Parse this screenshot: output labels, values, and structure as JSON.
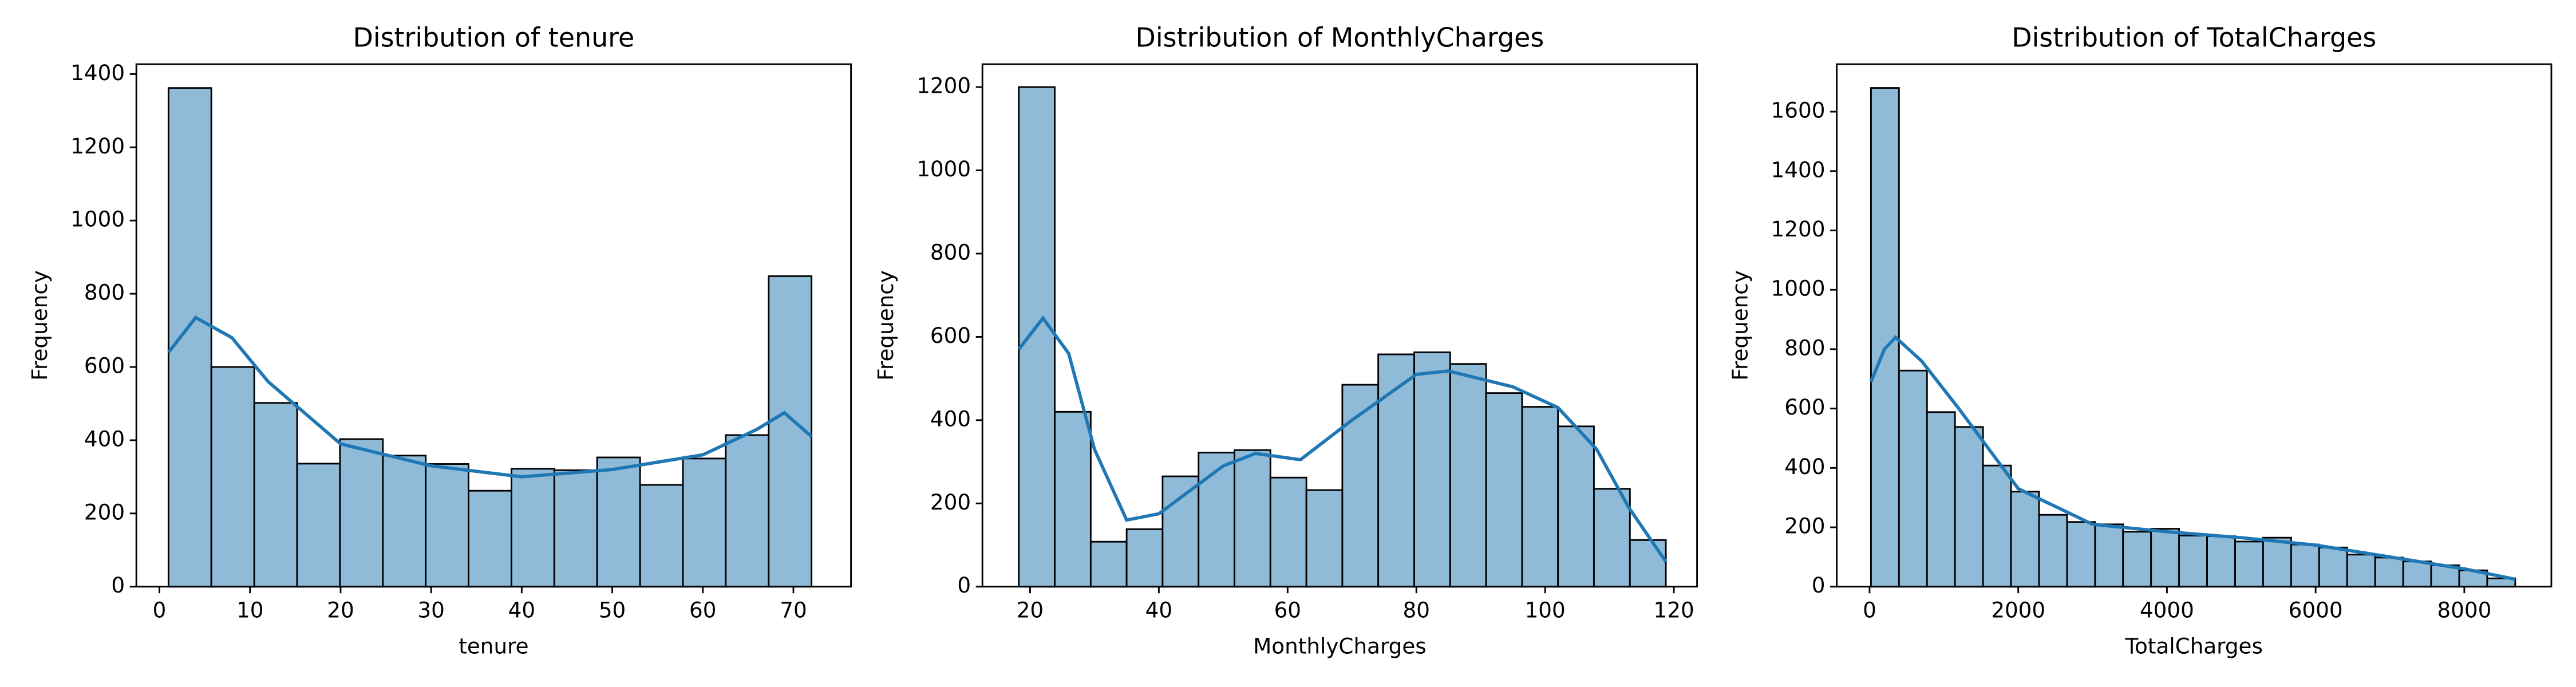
{
  "chart_data": [
    {
      "type": "histogram",
      "title": "Distribution of tenure",
      "xlabel": "tenure",
      "ylabel": "Frequency",
      "bins": [
        1,
        5.73,
        10.47,
        15.2,
        19.93,
        24.67,
        29.4,
        34.13,
        38.87,
        43.6,
        48.33,
        53.07,
        57.8,
        62.53,
        67.27,
        72
      ],
      "values": [
        1362,
        600,
        502,
        336,
        403,
        358,
        335,
        262,
        322,
        318,
        353,
        278,
        350,
        414,
        848
      ],
      "color": "#8fbbd9",
      "kde": {
        "x": [
          1,
          4,
          8,
          12,
          20,
          30,
          40,
          50,
          60,
          66,
          69,
          72
        ],
        "values": [
          640,
          735,
          680,
          560,
          390,
          330,
          300,
          320,
          360,
          430,
          475,
          410
        ],
        "color": "#1f77b4"
      },
      "xlim": [
        -2.55,
        76.36
      ],
      "ylim": [
        0,
        1427
      ],
      "xticks": [
        0,
        10,
        20,
        30,
        40,
        50,
        60,
        70
      ],
      "yticks": [
        0,
        200,
        400,
        600,
        800,
        1000,
        1200,
        1400
      ]
    },
    {
      "type": "histogram",
      "title": "Distribution of MonthlyCharges",
      "xlabel": "MonthlyCharges",
      "ylabel": "Frequency",
      "bins": [
        18.25,
        23.83,
        29.42,
        35,
        40.58,
        46.17,
        51.75,
        57.33,
        62.92,
        68.5,
        74.08,
        79.67,
        85.25,
        90.83,
        96.42,
        102,
        107.58,
        113.17,
        118.75
      ],
      "values": [
        1200,
        420,
        108,
        138,
        265,
        322,
        328,
        262,
        232,
        485,
        558,
        563,
        535,
        465,
        432,
        385,
        235,
        112
      ],
      "color": "#8fbbd9",
      "kde": {
        "x": [
          18.25,
          22,
          26,
          30,
          35,
          40,
          50,
          55,
          62,
          70,
          80,
          85,
          95,
          102,
          108,
          113,
          118.75
        ],
        "values": [
          570,
          645,
          560,
          330,
          160,
          175,
          290,
          320,
          305,
          400,
          510,
          518,
          480,
          430,
          330,
          190,
          60
        ],
        "color": "#1f77b4"
      },
      "xlim": [
        12.6,
        123.6
      ],
      "ylim": [
        0,
        1255
      ],
      "xticks": [
        20,
        40,
        60,
        80,
        100,
        120
      ],
      "yticks": [
        0,
        200,
        400,
        600,
        800,
        1000,
        1200
      ]
    },
    {
      "type": "histogram",
      "title": "Distribution of TotalCharges",
      "xlabel": "TotalCharges",
      "ylabel": "Frequency",
      "bins": [
        18.8,
        395.6,
        772.4,
        1149.1,
        1525.9,
        1902.7,
        2279.5,
        2656.3,
        3033.1,
        3409.8,
        3786.6,
        4163.4,
        4540.2,
        4917,
        5293.7,
        5670.5,
        6047.3,
        6424.1,
        6800.9,
        7177.7,
        7554.4,
        7931.2,
        8308,
        8684.8
      ],
      "values": [
        1680,
        728,
        588,
        538,
        408,
        320,
        242,
        218,
        210,
        185,
        195,
        172,
        170,
        152,
        165,
        142,
        132,
        108,
        98,
        85,
        72,
        55,
        28
      ],
      "color": "#8fbbd9",
      "kde": {
        "x": [
          18.8,
          200,
          350,
          700,
          1200,
          2000,
          3000,
          4000,
          5000,
          6000,
          7000,
          8000,
          8684.8
        ],
        "values": [
          690,
          800,
          840,
          760,
          600,
          330,
          210,
          185,
          165,
          140,
          100,
          60,
          25
        ],
        "color": "#1f77b4"
      },
      "xlim": [
        -442,
        9171
      ],
      "ylim": [
        0,
        1760
      ],
      "xticks": [
        0,
        2000,
        4000,
        6000,
        8000
      ],
      "yticks": [
        0,
        200,
        400,
        600,
        800,
        1000,
        1200,
        1400,
        1600
      ]
    }
  ]
}
